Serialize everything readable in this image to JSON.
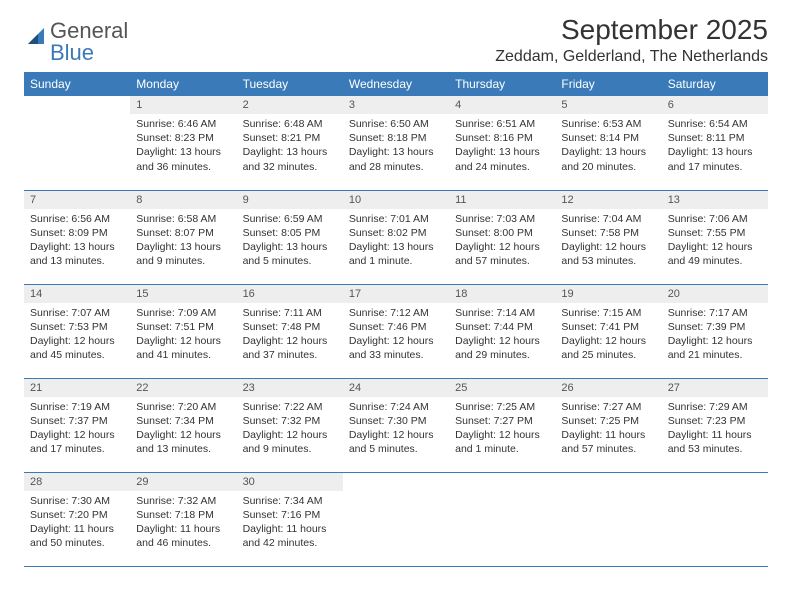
{
  "brand": {
    "name1": "General",
    "name2": "Blue"
  },
  "title": "September 2025",
  "subtitle": "Zeddam, Gelderland, The Netherlands",
  "theme": {
    "header_bg": "#3a7ab8",
    "header_fg": "#ffffff",
    "daynum_bg": "#eeeeee",
    "row_border": "#3a7ab8",
    "body_bg": "#ffffff",
    "text_color": "#333333",
    "font_family": "Arial, Helvetica, sans-serif",
    "title_fontsize": 28,
    "subtitle_fontsize": 16,
    "th_fontsize": 12,
    "body_fontsize": 10.5
  },
  "weekdays": [
    "Sunday",
    "Monday",
    "Tuesday",
    "Wednesday",
    "Thursday",
    "Friday",
    "Saturday"
  ],
  "weeks": [
    [
      null,
      {
        "n": "1",
        "sr": "Sunrise: 6:46 AM",
        "ss": "Sunset: 8:23 PM",
        "d1": "Daylight: 13 hours",
        "d2": "and 36 minutes."
      },
      {
        "n": "2",
        "sr": "Sunrise: 6:48 AM",
        "ss": "Sunset: 8:21 PM",
        "d1": "Daylight: 13 hours",
        "d2": "and 32 minutes."
      },
      {
        "n": "3",
        "sr": "Sunrise: 6:50 AM",
        "ss": "Sunset: 8:18 PM",
        "d1": "Daylight: 13 hours",
        "d2": "and 28 minutes."
      },
      {
        "n": "4",
        "sr": "Sunrise: 6:51 AM",
        "ss": "Sunset: 8:16 PM",
        "d1": "Daylight: 13 hours",
        "d2": "and 24 minutes."
      },
      {
        "n": "5",
        "sr": "Sunrise: 6:53 AM",
        "ss": "Sunset: 8:14 PM",
        "d1": "Daylight: 13 hours",
        "d2": "and 20 minutes."
      },
      {
        "n": "6",
        "sr": "Sunrise: 6:54 AM",
        "ss": "Sunset: 8:11 PM",
        "d1": "Daylight: 13 hours",
        "d2": "and 17 minutes."
      }
    ],
    [
      {
        "n": "7",
        "sr": "Sunrise: 6:56 AM",
        "ss": "Sunset: 8:09 PM",
        "d1": "Daylight: 13 hours",
        "d2": "and 13 minutes."
      },
      {
        "n": "8",
        "sr": "Sunrise: 6:58 AM",
        "ss": "Sunset: 8:07 PM",
        "d1": "Daylight: 13 hours",
        "d2": "and 9 minutes."
      },
      {
        "n": "9",
        "sr": "Sunrise: 6:59 AM",
        "ss": "Sunset: 8:05 PM",
        "d1": "Daylight: 13 hours",
        "d2": "and 5 minutes."
      },
      {
        "n": "10",
        "sr": "Sunrise: 7:01 AM",
        "ss": "Sunset: 8:02 PM",
        "d1": "Daylight: 13 hours",
        "d2": "and 1 minute."
      },
      {
        "n": "11",
        "sr": "Sunrise: 7:03 AM",
        "ss": "Sunset: 8:00 PM",
        "d1": "Daylight: 12 hours",
        "d2": "and 57 minutes."
      },
      {
        "n": "12",
        "sr": "Sunrise: 7:04 AM",
        "ss": "Sunset: 7:58 PM",
        "d1": "Daylight: 12 hours",
        "d2": "and 53 minutes."
      },
      {
        "n": "13",
        "sr": "Sunrise: 7:06 AM",
        "ss": "Sunset: 7:55 PM",
        "d1": "Daylight: 12 hours",
        "d2": "and 49 minutes."
      }
    ],
    [
      {
        "n": "14",
        "sr": "Sunrise: 7:07 AM",
        "ss": "Sunset: 7:53 PM",
        "d1": "Daylight: 12 hours",
        "d2": "and 45 minutes."
      },
      {
        "n": "15",
        "sr": "Sunrise: 7:09 AM",
        "ss": "Sunset: 7:51 PM",
        "d1": "Daylight: 12 hours",
        "d2": "and 41 minutes."
      },
      {
        "n": "16",
        "sr": "Sunrise: 7:11 AM",
        "ss": "Sunset: 7:48 PM",
        "d1": "Daylight: 12 hours",
        "d2": "and 37 minutes."
      },
      {
        "n": "17",
        "sr": "Sunrise: 7:12 AM",
        "ss": "Sunset: 7:46 PM",
        "d1": "Daylight: 12 hours",
        "d2": "and 33 minutes."
      },
      {
        "n": "18",
        "sr": "Sunrise: 7:14 AM",
        "ss": "Sunset: 7:44 PM",
        "d1": "Daylight: 12 hours",
        "d2": "and 29 minutes."
      },
      {
        "n": "19",
        "sr": "Sunrise: 7:15 AM",
        "ss": "Sunset: 7:41 PM",
        "d1": "Daylight: 12 hours",
        "d2": "and 25 minutes."
      },
      {
        "n": "20",
        "sr": "Sunrise: 7:17 AM",
        "ss": "Sunset: 7:39 PM",
        "d1": "Daylight: 12 hours",
        "d2": "and 21 minutes."
      }
    ],
    [
      {
        "n": "21",
        "sr": "Sunrise: 7:19 AM",
        "ss": "Sunset: 7:37 PM",
        "d1": "Daylight: 12 hours",
        "d2": "and 17 minutes."
      },
      {
        "n": "22",
        "sr": "Sunrise: 7:20 AM",
        "ss": "Sunset: 7:34 PM",
        "d1": "Daylight: 12 hours",
        "d2": "and 13 minutes."
      },
      {
        "n": "23",
        "sr": "Sunrise: 7:22 AM",
        "ss": "Sunset: 7:32 PM",
        "d1": "Daylight: 12 hours",
        "d2": "and 9 minutes."
      },
      {
        "n": "24",
        "sr": "Sunrise: 7:24 AM",
        "ss": "Sunset: 7:30 PM",
        "d1": "Daylight: 12 hours",
        "d2": "and 5 minutes."
      },
      {
        "n": "25",
        "sr": "Sunrise: 7:25 AM",
        "ss": "Sunset: 7:27 PM",
        "d1": "Daylight: 12 hours",
        "d2": "and 1 minute."
      },
      {
        "n": "26",
        "sr": "Sunrise: 7:27 AM",
        "ss": "Sunset: 7:25 PM",
        "d1": "Daylight: 11 hours",
        "d2": "and 57 minutes."
      },
      {
        "n": "27",
        "sr": "Sunrise: 7:29 AM",
        "ss": "Sunset: 7:23 PM",
        "d1": "Daylight: 11 hours",
        "d2": "and 53 minutes."
      }
    ],
    [
      {
        "n": "28",
        "sr": "Sunrise: 7:30 AM",
        "ss": "Sunset: 7:20 PM",
        "d1": "Daylight: 11 hours",
        "d2": "and 50 minutes."
      },
      {
        "n": "29",
        "sr": "Sunrise: 7:32 AM",
        "ss": "Sunset: 7:18 PM",
        "d1": "Daylight: 11 hours",
        "d2": "and 46 minutes."
      },
      {
        "n": "30",
        "sr": "Sunrise: 7:34 AM",
        "ss": "Sunset: 7:16 PM",
        "d1": "Daylight: 11 hours",
        "d2": "and 42 minutes."
      },
      null,
      null,
      null,
      null
    ]
  ]
}
